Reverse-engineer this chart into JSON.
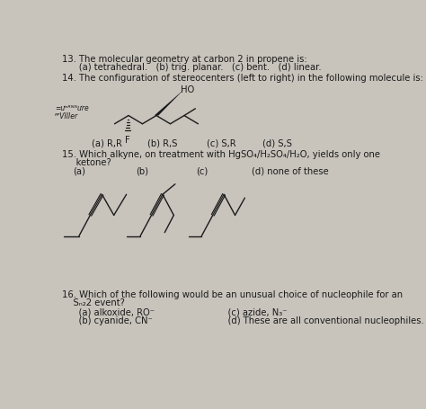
{
  "bg_color": "#c8c4bc",
  "text_color": "#1a1a1a",
  "fig_width": 4.74,
  "fig_height": 4.55,
  "dpi": 100,
  "font_size": 7.2,
  "small_font": 6.0,
  "q13_line1": "13. The molecular geometry at carbon 2 in propene is:",
  "q13_line2": "      (a) tetrahedral.   (b) trig. planar.   (c) bent.   (d) linear.",
  "q14_line1": "14. The configuration of stereocenters (left to right) in the following molecule is:",
  "q14_a": "(a) R,R",
  "q14_b": "(b) R,S",
  "q14_c": "(c) S,R",
  "q14_d": "(d) S,S",
  "q15_line1": "15. Which alkyne, on treatment with HgSO₄/H₂SO₄/H₂O, yields only one",
  "q15_line2": "     ketone?",
  "q15_a": "(a)",
  "q15_b": "(b)",
  "q15_c": "(c)",
  "q15_d": "(d) none of these",
  "q16_line1": "16. Which of the following would be an unusual choice of nucleophile for an",
  "q16_line2": "    Sₙ₂2 event?",
  "q16_a": "    (a) alkoxide, RO⁻",
  "q16_b": "    (b) cyanide, CN⁻",
  "q16_c": "    (c) azide, N₃⁻",
  "q16_d": "    (d) These are all conventional nucleophiles.",
  "left_note1": "=ưᵒᴿᴺᴺưre",
  "left_note2": "ᴿᴾVIIIer"
}
